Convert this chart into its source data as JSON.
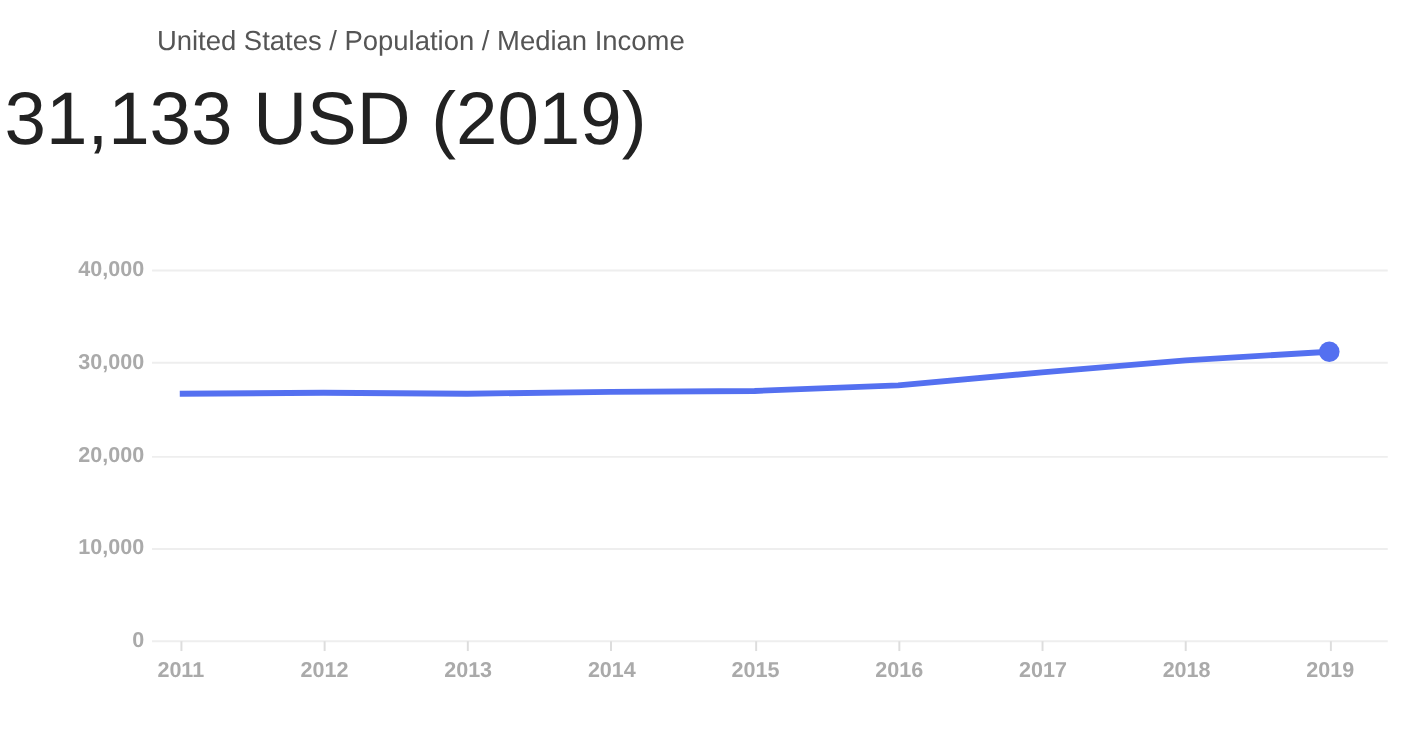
{
  "chart_data": {
    "type": "line",
    "title": "31,133 USD (2019)",
    "annotations": [
      "United States / Population / Median Income"
    ],
    "x": [
      2011,
      2012,
      2013,
      2014,
      2015,
      2016,
      2017,
      2018,
      2019
    ],
    "series": [
      {
        "color": "#5470f0",
        "values": [
          26600,
          26700,
          26600,
          26800,
          26900,
          27500,
          28900,
          30200,
          31133
        ],
        "marker": "none"
      },
      {
        "type": "scatter",
        "color": "#5470f0",
        "x": [
          2019
        ],
        "values": [
          31133
        ],
        "marker": "circle"
      }
    ],
    "xlim": [
      2010.8,
      2019.4
    ],
    "xticks": [
      2011,
      2012,
      2013,
      2014,
      2015,
      2016,
      2017,
      2018,
      2019
    ],
    "ylim": [
      0,
      40000
    ],
    "yticks": [
      0,
      {
        "value": 10000,
        "label": "10,000"
      },
      {
        "value": 20000,
        "label": "20,000"
      },
      {
        "value": 30000,
        "label": "30,000"
      },
      {
        "value": 40000,
        "label": "40,000"
      }
    ],
    "grid": "y",
    "line_style": "solid"
  }
}
